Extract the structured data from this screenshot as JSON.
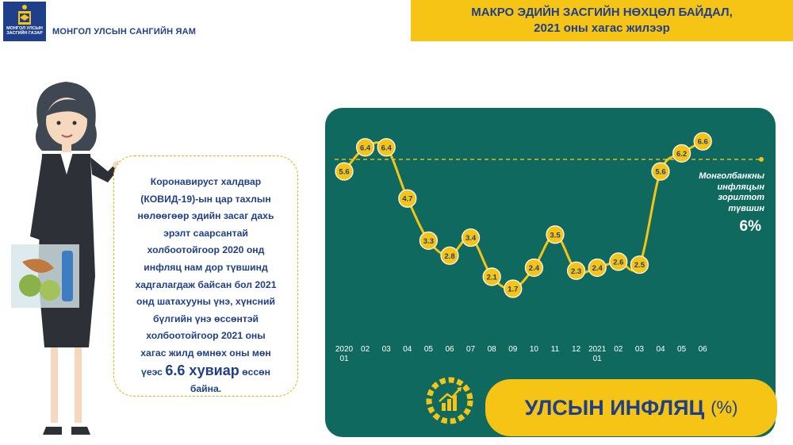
{
  "header": {
    "ministry": "МОНГОЛ УЛСЫН САНГИЙН ЯАМ",
    "logo_text_line1": "МОНГОЛ УЛСЫН",
    "logo_text_line2": "ЗАСГИЙН ГАЗАР",
    "title_line1": "МАКРО ЭДИЙН ЗАСГИЙН НӨХЦӨЛ БАЙДАЛ,",
    "title_line2": "2021 оны хагас жилээр"
  },
  "bubble": {
    "lines": [
      "Коронавируст халдвар",
      "(КОВИД-19)-ын цар тахлын",
      "нөлөөгөөр эдийн засаг дахь",
      "эрэлт саарсантай",
      "холбоотойгоор 2020 онд",
      "инфляц нам дор түвшинд",
      "хадгалагдаж байсан бол 2021",
      "онд шатахууны үнэ, хүнсний",
      "бүлгийн үнэ өссөнтэй",
      "холбоотойгоор 2021 оны",
      "хагас жилд өмнөх оны мөн"
    ],
    "last_pre": "үеэс ",
    "last_big": "6.6 хувиар",
    "last_post": " өссөн",
    "last_line": "байна."
  },
  "chart_data": {
    "type": "line",
    "x": [
      "2020 01",
      "02",
      "03",
      "04",
      "05",
      "06",
      "07",
      "08",
      "09",
      "10",
      "11",
      "12",
      "2021 01",
      "02",
      "03",
      "04",
      "05",
      "06"
    ],
    "x_tick_lines": [
      [
        "2020",
        "01"
      ],
      [
        "02"
      ],
      [
        "03"
      ],
      [
        "04"
      ],
      [
        "05"
      ],
      [
        "06"
      ],
      [
        "07"
      ],
      [
        "08"
      ],
      [
        "09"
      ],
      [
        "10"
      ],
      [
        "11"
      ],
      [
        "12"
      ],
      [
        "2021",
        "01"
      ],
      [
        "02"
      ],
      [
        "03"
      ],
      [
        "04"
      ],
      [
        "05"
      ],
      [
        "06"
      ]
    ],
    "values": [
      5.6,
      6.4,
      6.4,
      4.7,
      3.3,
      2.8,
      3.4,
      2.1,
      1.7,
      2.4,
      3.5,
      2.3,
      2.4,
      2.6,
      2.5,
      5.6,
      6.2,
      6.6
    ],
    "target": 6,
    "target_label_lines": [
      "Монголбанкны",
      "инфляцын",
      "зорилтот",
      "түвшин"
    ],
    "target_value_label": "6%",
    "title": "УЛСЫН ИНФЛЯЦ",
    "unit": "(%)",
    "ylim": [
      1.2,
      7.0
    ],
    "colors": {
      "line": "#f5c415",
      "marker": "#f5c415",
      "label_text": "#1f3f8a",
      "axis_text": "#ffffff",
      "panel": "#10695f"
    }
  }
}
